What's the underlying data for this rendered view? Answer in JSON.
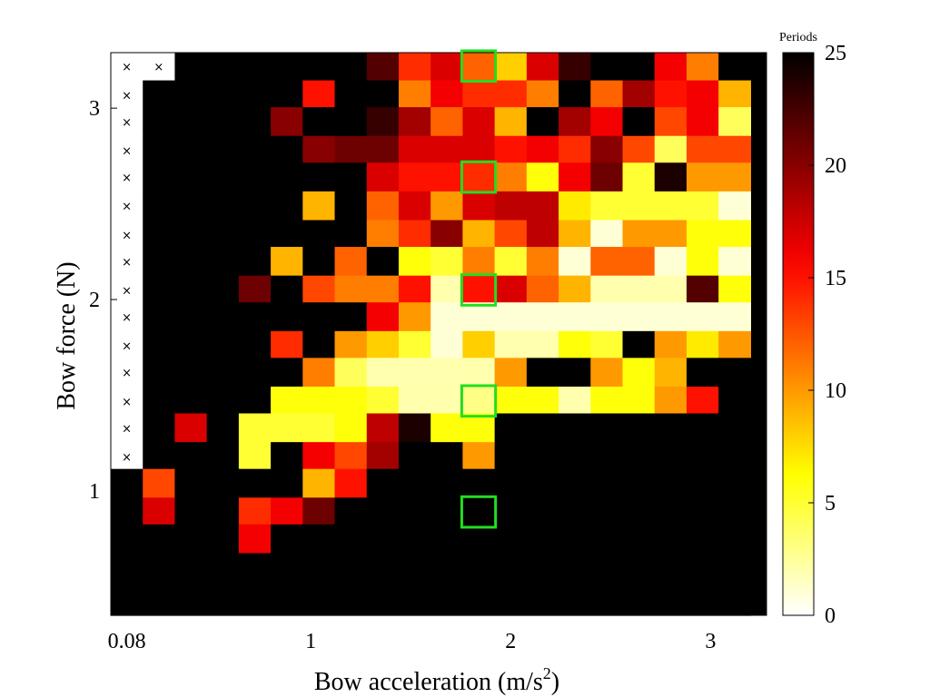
{
  "chart_data": {
    "type": "heatmap",
    "xlabel": "Bow acceleration (m/s",
    "xlabel_sup": "2",
    "xlabel_close": ")",
    "ylabel": "Bow force (N)",
    "colorbar_title": "Periods",
    "colormap": "hot (reversed): 0 = white, 25 = black",
    "color_range": [
      0,
      25
    ],
    "colorbar_ticks": [
      0,
      5,
      10,
      15,
      20,
      25
    ],
    "x_ticks": [
      {
        "value": 0.08,
        "label": "0.08"
      },
      {
        "value": 1,
        "label": "1"
      },
      {
        "value": 2,
        "label": "2"
      },
      {
        "value": 3,
        "label": "3"
      }
    ],
    "y_ticks": [
      {
        "value": 1,
        "label": "1"
      },
      {
        "value": 2,
        "label": "2"
      },
      {
        "value": 3,
        "label": "3"
      }
    ],
    "xlim": [
      0.0,
      3.28
    ],
    "ylim": [
      0.35,
      3.29
    ],
    "x_centers": [
      0.08,
      0.24,
      0.4,
      0.56,
      0.72,
      0.88,
      1.04,
      1.2,
      1.36,
      1.52,
      1.68,
      1.84,
      2.0,
      2.16,
      2.32,
      2.48,
      2.64,
      2.8,
      2.96,
      3.12
    ],
    "y_centers": [
      3.22,
      3.07,
      2.93,
      2.78,
      2.64,
      2.49,
      2.34,
      2.2,
      2.05,
      1.91,
      1.76,
      1.62,
      1.47,
      1.33,
      1.18,
      1.04,
      0.89,
      0.75,
      0.6,
      0.46,
      0.31
    ],
    "missing_marker": "×",
    "values": [
      [
        null,
        null,
        25,
        25,
        25,
        25,
        25,
        25,
        22,
        14,
        17,
        12,
        8,
        17,
        23,
        25,
        25,
        16,
        11,
        25
      ],
      [
        null,
        25,
        25,
        25,
        25,
        25,
        15,
        25,
        25,
        11,
        16,
        14,
        14,
        11,
        25,
        12,
        19,
        15,
        16,
        9
      ],
      [
        null,
        25,
        25,
        25,
        25,
        20,
        25,
        25,
        23,
        19,
        12,
        17,
        9,
        25,
        19,
        16,
        25,
        13,
        16,
        4
      ],
      [
        null,
        25,
        25,
        25,
        25,
        25,
        20,
        21,
        21,
        17,
        17,
        17,
        15,
        16,
        14,
        20,
        13,
        4,
        13,
        13
      ],
      [
        null,
        25,
        25,
        25,
        25,
        25,
        25,
        25,
        17,
        15,
        15,
        14,
        11,
        6,
        16,
        21,
        5,
        24,
        10,
        10
      ],
      [
        null,
        25,
        25,
        25,
        25,
        25,
        9,
        25,
        12,
        17,
        10,
        17,
        18,
        18,
        7,
        5,
        5,
        5,
        5,
        1
      ],
      [
        null,
        25,
        25,
        25,
        25,
        25,
        25,
        25,
        11,
        14,
        20,
        9,
        13,
        18,
        9,
        1,
        10,
        10,
        6,
        6
      ],
      [
        null,
        25,
        25,
        25,
        25,
        9,
        25,
        12,
        25,
        6,
        5,
        11,
        5,
        11,
        1,
        12,
        12,
        1,
        6,
        1
      ],
      [
        null,
        25,
        25,
        25,
        21,
        25,
        13,
        11,
        11,
        15,
        2,
        15,
        17,
        12,
        9,
        2,
        2,
        2,
        22,
        6
      ],
      [
        null,
        25,
        25,
        25,
        25,
        25,
        25,
        25,
        16,
        10,
        1,
        1,
        1,
        1,
        1,
        1,
        1,
        1,
        1,
        1
      ],
      [
        null,
        25,
        25,
        25,
        25,
        14,
        25,
        10,
        8,
        5,
        1,
        8,
        2,
        2,
        6,
        5,
        25,
        10,
        7,
        10
      ],
      [
        null,
        25,
        25,
        25,
        25,
        25,
        11,
        4,
        2,
        2,
        2,
        2,
        10,
        25,
        25,
        10,
        6,
        9,
        25,
        25
      ],
      [
        null,
        25,
        25,
        25,
        25,
        6,
        6,
        6,
        5,
        2,
        2,
        3,
        6,
        6,
        2,
        6,
        6,
        10,
        15,
        25
      ],
      [
        null,
        25,
        17,
        25,
        5,
        5,
        5,
        6,
        18,
        24,
        6,
        6,
        25,
        25,
        25,
        25,
        25,
        25,
        25,
        25
      ],
      [
        null,
        25,
        25,
        25,
        5,
        25,
        16,
        13,
        19,
        25,
        25,
        10,
        25,
        25,
        25,
        25,
        25,
        25,
        25,
        25
      ],
      [
        25,
        13,
        25,
        25,
        25,
        25,
        9,
        15,
        25,
        25,
        25,
        25,
        25,
        25,
        25,
        25,
        25,
        25,
        25,
        25
      ],
      [
        25,
        17,
        25,
        25,
        14,
        16,
        21,
        25,
        25,
        25,
        25,
        25,
        25,
        25,
        25,
        25,
        25,
        25,
        25,
        25
      ],
      [
        25,
        25,
        25,
        25,
        16,
        25,
        25,
        25,
        25,
        25,
        25,
        25,
        25,
        25,
        25,
        25,
        25,
        25,
        25,
        25
      ],
      [
        25,
        25,
        25,
        25,
        25,
        25,
        25,
        25,
        25,
        25,
        25,
        25,
        25,
        25,
        25,
        25,
        25,
        25,
        25,
        25
      ],
      [
        25,
        25,
        25,
        25,
        25,
        25,
        25,
        25,
        25,
        25,
        25,
        25,
        25,
        25,
        25,
        25,
        25,
        25,
        25,
        25
      ],
      [
        25,
        25,
        25,
        25,
        25,
        25,
        25,
        25,
        25,
        25,
        25,
        25,
        25,
        25,
        25,
        25,
        25,
        25,
        25,
        25
      ]
    ],
    "extra_missing": [
      {
        "row": 0,
        "col": 1
      }
    ],
    "highlight_boxes": [
      {
        "x": 1.84,
        "y": 3.22
      },
      {
        "x": 1.84,
        "y": 2.64
      },
      {
        "x": 1.84,
        "y": 2.05
      },
      {
        "x": 1.84,
        "y": 1.47
      },
      {
        "x": 1.84,
        "y": 0.89
      }
    ],
    "highlight_color": "#22dd22"
  }
}
